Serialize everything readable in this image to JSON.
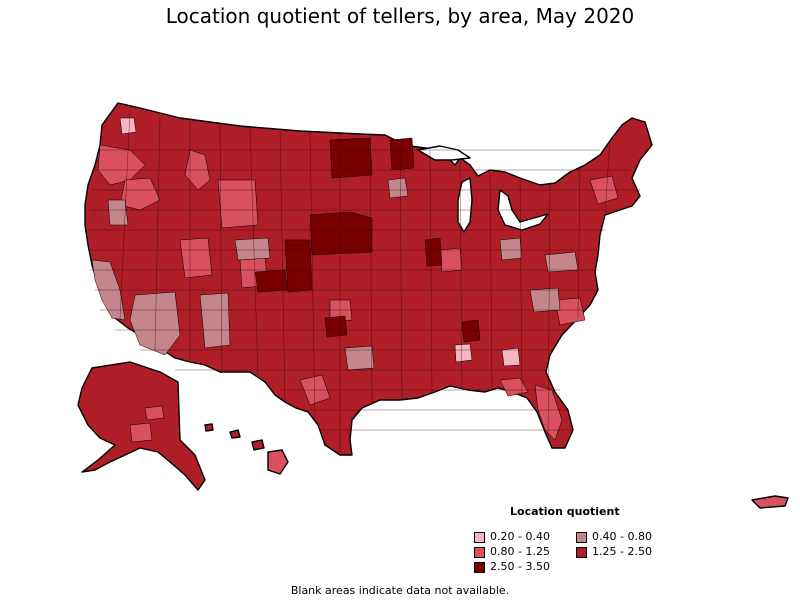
{
  "title": "Location quotient of tellers, by area, May 2020",
  "legend": {
    "title": "Location quotient",
    "items": [
      {
        "label": "0.20 - 0.40",
        "color": "#f4b6c0"
      },
      {
        "label": "0.40 - 0.80",
        "color": "#c4868a"
      },
      {
        "label": "0.80 - 1.25",
        "color": "#d9505e"
      },
      {
        "label": "1.25 - 2.50",
        "color": "#b01e28"
      },
      {
        "label": "2.50 - 3.50",
        "color": "#7a0000"
      }
    ]
  },
  "footnote": "Blank areas indicate data not available.",
  "colors": {
    "very_low": "#f4b6c0",
    "low": "#c4868a",
    "mid": "#d9505e",
    "high": "#b01e28",
    "very_high": "#7a0000",
    "border": "#000000"
  }
}
